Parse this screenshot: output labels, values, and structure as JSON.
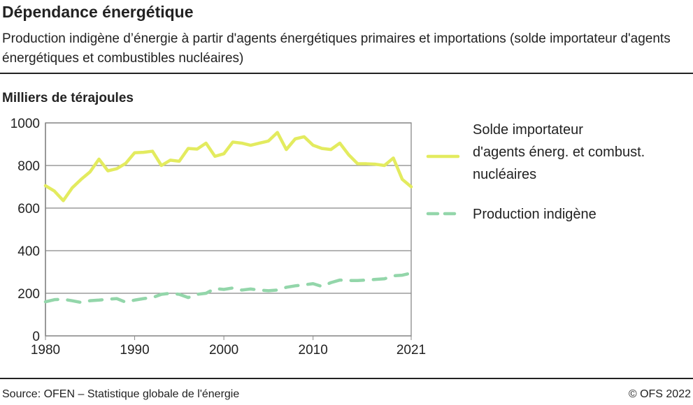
{
  "title": "Dépendance énergétique",
  "subtitle": "Production indigène d’énergie à partir d'agents énergétiques primaires et importations (solde importateur d'agents énergétiques et combustibles nucléaires)",
  "source": "Source: OFEN – Statistique globale de l'énergie",
  "copyright": "© OFS 2022",
  "chart_data": {
    "type": "line",
    "ylabel": "Milliers de térajoules",
    "xlabel": "",
    "ylim": [
      0,
      1000
    ],
    "yticks": [
      0,
      200,
      400,
      600,
      800,
      1000
    ],
    "xticks": [
      1980,
      1990,
      2000,
      2010,
      2021
    ],
    "grid": true,
    "legend_placement": "right",
    "x": [
      1980,
      1981,
      1982,
      1983,
      1984,
      1985,
      1986,
      1987,
      1988,
      1989,
      1990,
      1991,
      1992,
      1993,
      1994,
      1995,
      1996,
      1997,
      1998,
      1999,
      2000,
      2001,
      2002,
      2003,
      2004,
      2005,
      2006,
      2007,
      2008,
      2009,
      2010,
      2011,
      2012,
      2013,
      2014,
      2015,
      2016,
      2017,
      2018,
      2019,
      2020,
      2021
    ],
    "series": [
      {
        "name": "Solde importateur d'agents énerg. et combust. nucléaires",
        "color": "#e3eb5f",
        "style": "solid",
        "values": [
          705,
          680,
          635,
          695,
          735,
          770,
          830,
          775,
          785,
          810,
          860,
          862,
          867,
          800,
          825,
          820,
          880,
          877,
          905,
          843,
          855,
          910,
          905,
          895,
          905,
          915,
          955,
          875,
          925,
          935,
          895,
          880,
          875,
          905,
          850,
          808,
          808,
          806,
          800,
          835,
          735,
          700
        ]
      },
      {
        "name": "Production indigène",
        "color": "#93d6aa",
        "style": "dashed",
        "values": [
          160,
          170,
          172,
          165,
          157,
          165,
          168,
          172,
          175,
          158,
          168,
          175,
          180,
          195,
          200,
          195,
          180,
          195,
          200,
          222,
          218,
          225,
          215,
          220,
          215,
          212,
          215,
          228,
          235,
          240,
          245,
          232,
          250,
          262,
          260,
          260,
          262,
          265,
          268,
          282,
          285,
          295
        ]
      }
    ]
  }
}
